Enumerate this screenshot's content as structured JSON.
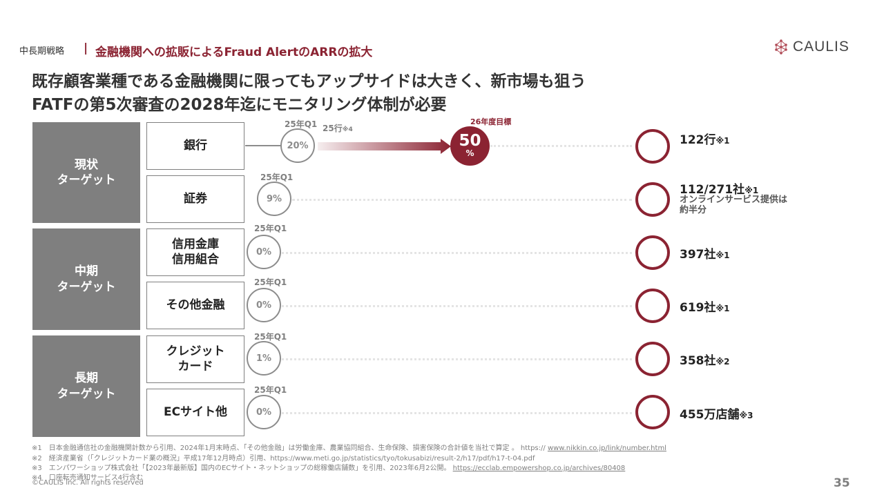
{
  "header": {
    "section_label": "中長期戦略",
    "separator": "|",
    "section_title": "金融機関への拡販によるFraud AlertのARRの拡大",
    "logo_text": "CAULIS"
  },
  "headline": {
    "line1": "既存顧客業種である金融機関に限ってもアップサイドは大きく、新市場も狙う",
    "line2": "FATFの第5次審査の2028年迄にモニタリング体制が必要"
  },
  "groups": [
    {
      "line1": "現状",
      "line2": "ターゲット"
    },
    {
      "line1": "中期",
      "line2": "ターゲット"
    },
    {
      "line1": "長期",
      "line2": "ターゲット"
    }
  ],
  "rows": [
    {
      "category_line1": "銀行",
      "category_line2": "",
      "quarter": "25年Q1",
      "percent": "20%",
      "count": "122行",
      "note_mark": "※1",
      "sub_line1": "",
      "sub_line2": ""
    },
    {
      "category_line1": "証券",
      "category_line2": "",
      "quarter": "25年Q1",
      "percent": "9%",
      "count": "112/271社",
      "note_mark": "※1",
      "sub_line1": "オンラインサービス提供は",
      "sub_line2": "約半分"
    },
    {
      "category_line1": "信用金庫",
      "category_line2": "信用組合",
      "quarter": "25年Q1",
      "percent": "0%",
      "count": "397社",
      "note_mark": "※1",
      "sub_line1": "",
      "sub_line2": ""
    },
    {
      "category_line1": "その他金融",
      "category_line2": "",
      "quarter": "25年Q1",
      "percent": "0%",
      "count": "619社",
      "note_mark": "※1",
      "sub_line1": "",
      "sub_line2": ""
    },
    {
      "category_line1": "クレジット",
      "category_line2": "カード",
      "quarter": "25年Q1",
      "percent": "1%",
      "count": "358社",
      "note_mark": "※2",
      "sub_line1": "",
      "sub_line2": ""
    },
    {
      "category_line1": "ECサイト他",
      "category_line2": "",
      "quarter": "25年Q1",
      "percent": "0%",
      "count": "455万店舗",
      "note_mark": "※3",
      "sub_line1": "",
      "sub_line2": ""
    }
  ],
  "bank_goal": {
    "arrow_label": "25行",
    "arrow_note": "※4",
    "goal_label": "26年度目標",
    "goal_number": "50",
    "goal_unit": "%"
  },
  "footnotes": [
    {
      "text": "※1　日本金融通信社の金融機関計数から引用、2024年1月末時点、「その他金融」は労働金庫、農業協同組合、生命保険、損害保険の合計値を当社で算定 。 https:// ",
      "link": "www.nikkin.co.jp/link/number.html"
    },
    {
      "text": "※2　経済産業省（「クレジットカード業の概況」平成17年12月時点）引用、https://www.meti.go.jp/statistics/tyo/tokusabizi/result-2/h17/pdf/h17-t-04.pdf",
      "link": ""
    },
    {
      "text": "※3　エンパワーショップ株式会社「【2023年最新版】国内のECサイト・ネットショップの総稼働店舗数」を引用、2023年6月2公開。 ",
      "link": "https://ecclab.empowershop.co.jp/archives/80408"
    },
    {
      "text": "※4　口座転売通知サービス4行含む",
      "link": ""
    }
  ],
  "copyright": "©CAULIS Inc. All rights reserved",
  "page_number": "35"
}
